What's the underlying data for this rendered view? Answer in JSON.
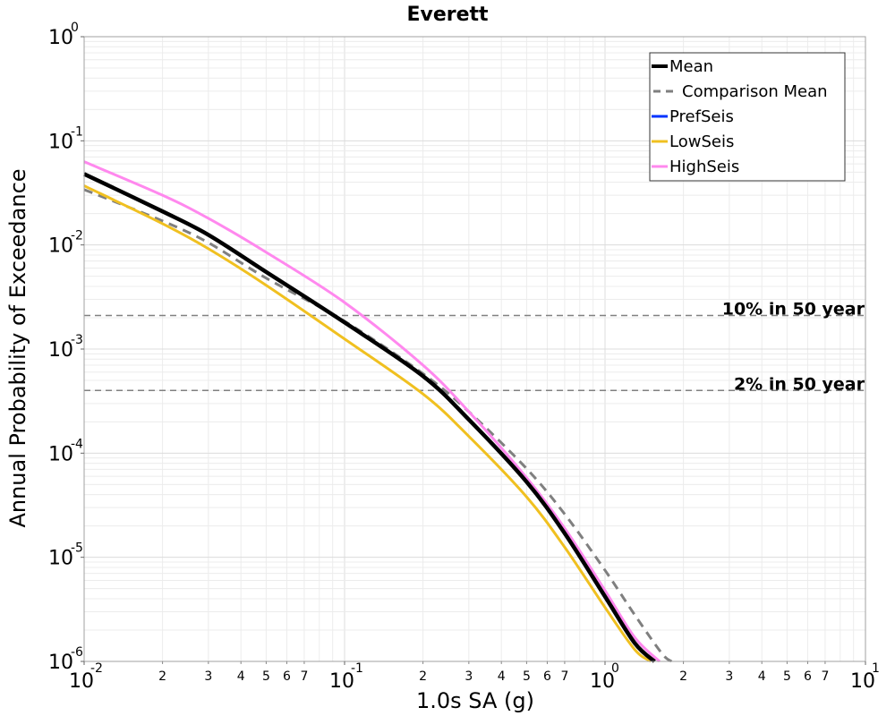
{
  "chart_data": {
    "type": "line",
    "title": "Everett",
    "xlabel": "1.0s SA (g)",
    "ylabel": "Annual Probability of Exceedance",
    "x_scale": "log",
    "y_scale": "log",
    "xlim": [
      0.01,
      10
    ],
    "ylim": [
      1e-06,
      1
    ],
    "grid": true,
    "legend_position": "top-right",
    "x_major_ticks": [
      {
        "base": "10",
        "exp": "-2",
        "value": 0.01
      },
      {
        "base": "10",
        "exp": "-1",
        "value": 0.1
      },
      {
        "base": "10",
        "exp": "0",
        "value": 1
      },
      {
        "base": "10",
        "exp": "1",
        "value": 10
      }
    ],
    "y_major_ticks": [
      {
        "base": "10",
        "exp": "0",
        "value": 1
      },
      {
        "base": "10",
        "exp": "-1",
        "value": 0.1
      },
      {
        "base": "10",
        "exp": "-2",
        "value": 0.01
      },
      {
        "base": "10",
        "exp": "-3",
        "value": 0.001
      },
      {
        "base": "10",
        "exp": "-4",
        "value": 0.0001
      },
      {
        "base": "10",
        "exp": "-5",
        "value": 1e-05
      },
      {
        "base": "10",
        "exp": "-6",
        "value": 1e-06
      }
    ],
    "x_minor_tick_labels": [
      "2",
      "3",
      "4",
      "5",
      "6",
      "7"
    ],
    "reference_lines": [
      {
        "label": "10% in 50 year",
        "y": 0.0021
      },
      {
        "label": "2% in 50 year",
        "y": 0.0004
      }
    ],
    "series": [
      {
        "name": "Mean",
        "color": "#000000",
        "dash": "solid",
        "x": [
          0.01,
          0.02,
          0.03,
          0.05,
          0.1,
          0.2,
          0.3,
          0.5,
          0.7,
          1.0,
          1.3,
          1.55
        ],
        "y": [
          0.048,
          0.021,
          0.0125,
          0.0055,
          0.0018,
          0.00055,
          0.00021,
          5.3e-05,
          1.7e-05,
          4.2e-06,
          1.5e-06,
          1e-06
        ]
      },
      {
        "name": "Comparison Mean",
        "color": "#7f7f7f",
        "dash": "dashed",
        "x": [
          0.01,
          0.02,
          0.03,
          0.05,
          0.1,
          0.2,
          0.3,
          0.5,
          0.7,
          1.0,
          1.3,
          1.65,
          1.8
        ],
        "y": [
          0.034,
          0.017,
          0.0105,
          0.0048,
          0.00185,
          0.00058,
          0.00025,
          7.1e-05,
          2.6e-05,
          7.5e-06,
          2.8e-06,
          1.2e-06,
          1e-06
        ]
      },
      {
        "name": "PrefSeis",
        "color": "#0033ff",
        "dash": "solid",
        "x": [],
        "y": []
      },
      {
        "name": "LowSeis",
        "color": "#f0c020",
        "dash": "solid",
        "x": [
          0.01,
          0.02,
          0.03,
          0.05,
          0.1,
          0.2,
          0.3,
          0.5,
          0.7,
          1.0,
          1.3,
          1.5
        ],
        "y": [
          0.037,
          0.016,
          0.0092,
          0.0041,
          0.00125,
          0.00037,
          0.000145,
          3.8e-05,
          1.25e-05,
          3.3e-06,
          1.3e-06,
          1e-06
        ]
      },
      {
        "name": "HighSeis",
        "color": "#ff88ee",
        "dash": "solid",
        "x": [
          0.01,
          0.02,
          0.03,
          0.05,
          0.1,
          0.2,
          0.3,
          0.5,
          0.7,
          1.0,
          1.3,
          1.62
        ],
        "y": [
          0.063,
          0.03,
          0.018,
          0.0085,
          0.0028,
          0.0007,
          0.00025,
          5.8e-05,
          1.9e-05,
          4.8e-06,
          1.7e-06,
          1e-06
        ]
      }
    ]
  }
}
